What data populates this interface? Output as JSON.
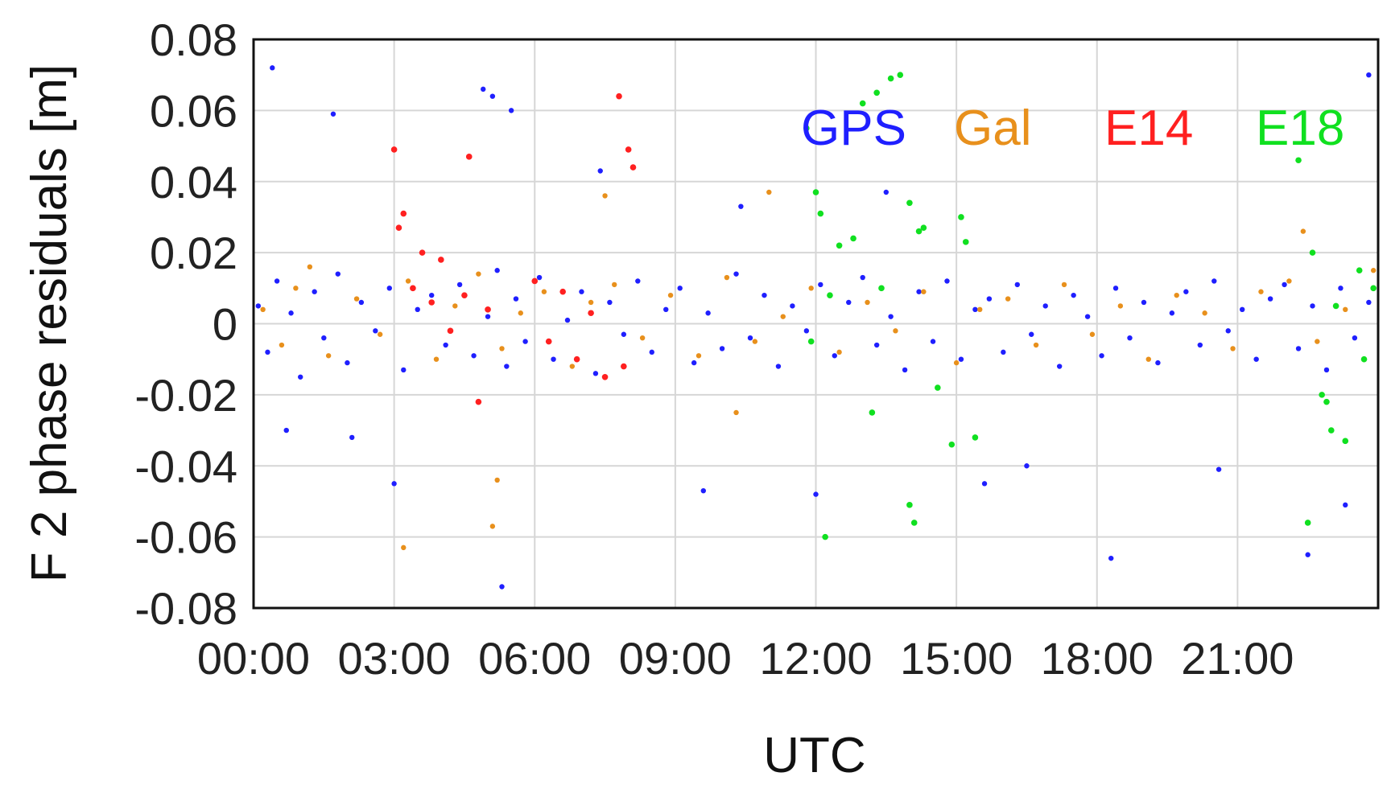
{
  "chart_data": {
    "type": "scatter",
    "title": "",
    "xlabel": "UTC",
    "ylabel": "F 2 phase residuals [m]",
    "x_unit": "hours UTC",
    "xlim": [
      0,
      24
    ],
    "ylim": [
      -0.08,
      0.08
    ],
    "grid": true,
    "legend_placement": "top-right (inside plot)",
    "x_ticks": [
      {
        "value": 0,
        "label": "00:00"
      },
      {
        "value": 3,
        "label": "03:00"
      },
      {
        "value": 6,
        "label": "06:00"
      },
      {
        "value": 9,
        "label": "09:00"
      },
      {
        "value": 12,
        "label": "12:00"
      },
      {
        "value": 15,
        "label": "15:00"
      },
      {
        "value": 18,
        "label": "18:00"
      },
      {
        "value": 21,
        "label": "21:00"
      }
    ],
    "y_ticks": [
      {
        "value": 0.08,
        "label": "0.08"
      },
      {
        "value": 0.06,
        "label": "0.06"
      },
      {
        "value": 0.04,
        "label": "0.04"
      },
      {
        "value": 0.02,
        "label": "0.02"
      },
      {
        "value": 0,
        "label": "0"
      },
      {
        "value": -0.02,
        "label": "-0.02"
      },
      {
        "value": -0.04,
        "label": "-0.04"
      },
      {
        "value": -0.06,
        "label": "-0.06"
      },
      {
        "value": -0.08,
        "label": "-0.08"
      }
    ],
    "series": [
      {
        "name": "GPS",
        "color": "#1f1fff",
        "x": [
          0.1,
          0.3,
          0.5,
          0.8,
          1.0,
          1.3,
          1.5,
          1.8,
          2.0,
          2.3,
          2.6,
          2.9,
          3.2,
          3.5,
          3.8,
          4.1,
          4.4,
          4.7,
          5.0,
          5.2,
          5.4,
          5.6,
          5.8,
          6.1,
          6.4,
          6.7,
          7.0,
          7.3,
          7.6,
          7.9,
          8.2,
          8.5,
          8.8,
          9.1,
          9.4,
          9.7,
          10.0,
          10.3,
          10.6,
          10.9,
          11.2,
          11.5,
          11.8,
          12.1,
          12.4,
          12.7,
          13.0,
          13.3,
          13.6,
          13.9,
          14.2,
          14.5,
          14.8,
          15.1,
          15.4,
          15.7,
          16.0,
          16.3,
          16.6,
          16.9,
          17.2,
          17.5,
          17.8,
          18.1,
          18.4,
          18.7,
          19.0,
          19.3,
          19.6,
          19.9,
          20.2,
          20.5,
          20.8,
          21.1,
          21.4,
          21.7,
          22.0,
          22.3,
          22.6,
          22.9,
          23.2,
          23.5,
          23.8,
          0.4,
          1.7,
          4.9,
          5.1,
          5.3,
          5.5,
          9.6,
          10.4,
          12.0,
          13.5,
          18.3,
          22.5,
          23.8,
          0.7,
          2.1,
          3.0,
          7.4,
          15.6,
          16.5,
          20.6,
          23.3
        ],
        "y": [
          0.005,
          -0.008,
          0.012,
          0.003,
          -0.015,
          0.009,
          -0.004,
          0.014,
          -0.011,
          0.006,
          -0.002,
          0.01,
          -0.013,
          0.004,
          0.008,
          -0.006,
          0.011,
          -0.009,
          0.002,
          0.015,
          -0.012,
          0.007,
          -0.005,
          0.013,
          -0.01,
          0.001,
          0.009,
          -0.014,
          0.006,
          -0.003,
          0.012,
          -0.008,
          0.004,
          0.01,
          -0.011,
          0.003,
          -0.007,
          0.014,
          -0.004,
          0.008,
          -0.012,
          0.005,
          -0.002,
          0.011,
          -0.009,
          0.006,
          0.013,
          -0.006,
          0.002,
          -0.013,
          0.009,
          -0.005,
          0.012,
          -0.01,
          0.004,
          0.007,
          -0.008,
          0.011,
          -0.003,
          0.005,
          -0.012,
          0.008,
          0.002,
          -0.009,
          0.01,
          -0.004,
          0.006,
          -0.011,
          0.003,
          0.009,
          -0.006,
          0.012,
          -0.002,
          0.004,
          -0.01,
          0.007,
          0.011,
          -0.007,
          0.005,
          -0.013,
          0.01,
          -0.004,
          0.006,
          0.072,
          0.059,
          0.066,
          0.064,
          -0.074,
          0.06,
          -0.047,
          0.033,
          -0.048,
          0.037,
          -0.066,
          -0.065,
          0.07,
          -0.03,
          -0.032,
          -0.045,
          0.043,
          -0.045,
          -0.04,
          -0.041,
          -0.051
        ]
      },
      {
        "name": "Gal",
        "color": "#e8901c",
        "x": [
          0.2,
          0.6,
          0.9,
          1.2,
          1.6,
          2.2,
          2.7,
          3.3,
          3.9,
          4.3,
          4.8,
          5.3,
          5.7,
          6.2,
          6.8,
          7.2,
          7.7,
          8.3,
          8.9,
          9.5,
          10.1,
          10.7,
          11.3,
          11.9,
          12.5,
          13.1,
          13.7,
          14.3,
          15.0,
          15.5,
          16.1,
          16.7,
          17.3,
          17.9,
          18.5,
          19.1,
          19.7,
          20.3,
          20.9,
          21.5,
          22.1,
          22.7,
          23.3,
          23.9,
          3.2,
          5.1,
          5.2,
          7.5,
          10.3,
          11.0,
          22.4
        ],
        "y": [
          0.004,
          -0.006,
          0.01,
          0.016,
          -0.009,
          0.007,
          -0.003,
          0.012,
          -0.01,
          0.005,
          0.014,
          -0.007,
          0.003,
          0.009,
          -0.012,
          0.006,
          0.011,
          -0.004,
          0.008,
          -0.009,
          0.013,
          -0.005,
          0.002,
          0.01,
          -0.008,
          0.006,
          -0.002,
          0.009,
          -0.011,
          0.004,
          0.007,
          -0.006,
          0.011,
          -0.003,
          0.005,
          -0.01,
          0.008,
          0.003,
          -0.007,
          0.009,
          0.012,
          -0.005,
          0.004,
          0.015,
          -0.063,
          -0.057,
          -0.044,
          0.036,
          -0.025,
          0.037,
          0.026
        ]
      },
      {
        "name": "E14",
        "color": "#ff2020",
        "x": [
          3.0,
          3.2,
          3.4,
          3.6,
          3.8,
          4.0,
          4.2,
          4.5,
          4.8,
          5.0,
          6.0,
          6.3,
          6.6,
          6.9,
          7.2,
          7.5,
          7.8,
          8.0,
          8.1,
          3.1,
          4.6,
          7.9
        ],
        "y": [
          0.049,
          0.031,
          0.01,
          0.02,
          0.006,
          0.018,
          -0.002,
          0.008,
          -0.022,
          0.004,
          0.012,
          -0.005,
          0.009,
          -0.01,
          0.003,
          -0.015,
          0.064,
          0.049,
          0.044,
          0.027,
          0.047,
          -0.012
        ]
      },
      {
        "name": "E18",
        "color": "#10e020",
        "x": [
          11.8,
          12.0,
          12.1,
          12.3,
          12.5,
          12.8,
          13.0,
          13.3,
          13.6,
          13.8,
          14.0,
          14.3,
          14.6,
          14.9,
          15.1,
          15.2,
          15.4,
          22.3,
          22.6,
          22.8,
          23.0,
          23.3,
          23.6,
          23.9,
          11.9,
          12.2,
          13.2,
          14.0,
          13.4,
          22.5,
          22.9,
          23.1,
          23.7,
          14.1,
          14.2
        ],
        "y": [
          0.055,
          0.037,
          0.031,
          0.008,
          0.022,
          0.024,
          0.062,
          0.065,
          0.069,
          0.07,
          0.034,
          0.027,
          -0.018,
          -0.034,
          0.03,
          0.023,
          -0.032,
          0.046,
          0.02,
          -0.02,
          -0.03,
          -0.033,
          0.015,
          0.01,
          -0.005,
          -0.06,
          -0.025,
          -0.051,
          0.01,
          -0.056,
          -0.022,
          0.005,
          -0.01,
          -0.056,
          0.026
        ]
      }
    ]
  }
}
